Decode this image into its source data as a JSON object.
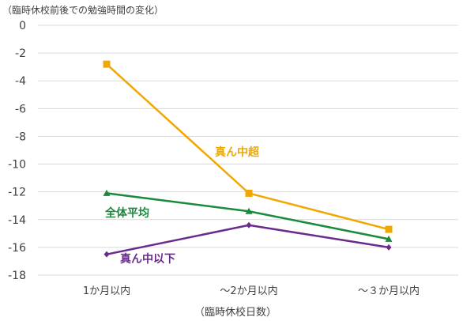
{
  "chart_data": {
    "type": "line",
    "title": "（臨時休校前後での勉強時間の変化）",
    "xlabel": "（臨時休校日数）",
    "ylabel": "",
    "categories": [
      "1か月以内",
      "～2か月以内",
      "～３か月以内"
    ],
    "y_ticks": [
      "0",
      "-2",
      "-4",
      "-6",
      "-8",
      "-10",
      "-12",
      "-14",
      "-16",
      "-18"
    ],
    "ylim": [
      -18,
      0
    ],
    "grid": true,
    "legend": "inline labels next to lines",
    "series": [
      {
        "name": "真ん中超",
        "values": [
          -2.8,
          -12.1,
          -14.7
        ],
        "color": "#f0a800",
        "marker": "square"
      },
      {
        "name": "全体平均",
        "values": [
          -12.1,
          -13.4,
          -15.4
        ],
        "color": "#1a8a3c",
        "marker": "triangle"
      },
      {
        "name": "真ん中以下",
        "values": [
          -16.5,
          -14.4,
          -16.0
        ],
        "color": "#6a2a8e",
        "marker": "diamond"
      }
    ]
  }
}
